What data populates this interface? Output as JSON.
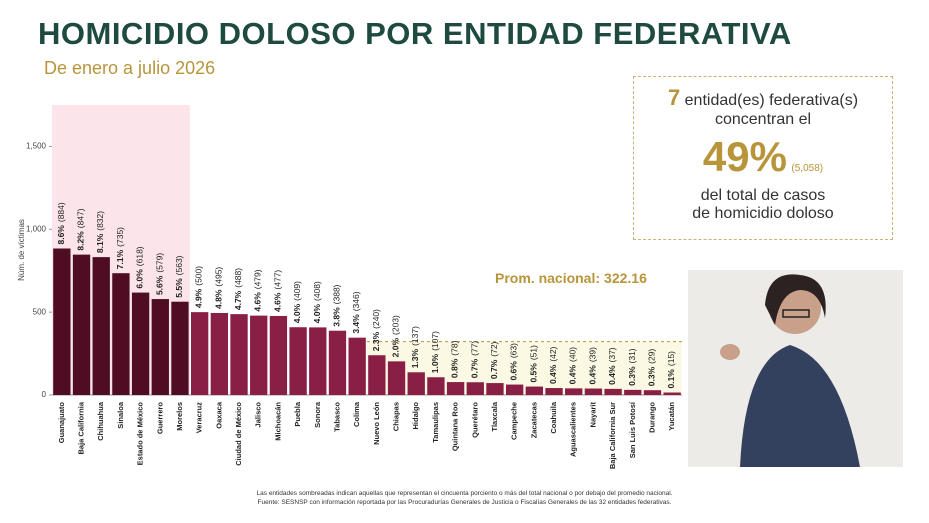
{
  "chart_data": {
    "type": "bar",
    "title": "HOMICIDIO DOLOSO POR ENTIDAD FEDERATIVA",
    "subtitle": "De enero a julio 2026",
    "y_label": "Núm. de víctimas",
    "categories": [
      "Guanajuato",
      "Baja California",
      "Chihuahua",
      "Sinaloa",
      "Estado de México",
      "Guerrero",
      "Morelos",
      "Veracruz",
      "Oaxaca",
      "Ciudad de México",
      "Jalisco",
      "Michoacán",
      "Puebla",
      "Sonora",
      "Tabasco",
      "Colima",
      "Nuevo León",
      "Chiapas",
      "Hidalgo",
      "Tamaulipas",
      "Quintana Roo",
      "Querétaro",
      "Tlaxcala",
      "Campeche",
      "Zacatecas",
      "Coahuila",
      "Aguascalientes",
      "Nayarit",
      "Baja California Sur",
      "San Luis Potosí",
      "Durango",
      "Yucatán"
    ],
    "values": [
      884,
      847,
      832,
      735,
      618,
      579,
      563,
      500,
      495,
      488,
      479,
      477,
      409,
      408,
      388,
      346,
      240,
      203,
      137,
      107,
      78,
      77,
      72,
      63,
      51,
      42,
      40,
      39,
      37,
      31,
      29,
      15
    ],
    "value_labels": [
      "(884)",
      "(847)",
      "(832)",
      "(735)",
      "(618)",
      "(579)",
      "(563)",
      "(500)",
      "(495)",
      "(488)",
      "(479)",
      "(477)",
      "(409)",
      "(408)",
      "(388)",
      "(346)",
      "(240)",
      "(203)",
      "(137)",
      "(107)",
      "(78)",
      "(77)",
      "(72)",
      "(63)",
      "(51)",
      "(42)",
      "(40)",
      "(39)",
      "(37)",
      "(31)",
      "(29)",
      "(15)"
    ],
    "shares": [
      8.6,
      8.2,
      8.1,
      7.1,
      6.0,
      5.6,
      5.5,
      4.9,
      4.8,
      4.7,
      4.6,
      4.6,
      4.0,
      4.0,
      3.8,
      3.4,
      2.3,
      2.0,
      1.3,
      1.0,
      0.8,
      0.7,
      0.7,
      0.6,
      0.5,
      0.4,
      0.4,
      0.4,
      0.4,
      0.3,
      0.3,
      0.1
    ],
    "share_labels": [
      "8.6%",
      "8.2%",
      "8.1%",
      "7.1%",
      "6.0%",
      "5.6%",
      "5.5%",
      "4.9%",
      "4.8%",
      "4.7%",
      "4.6%",
      "4.6%",
      "4.0%",
      "4.0%",
      "3.8%",
      "3.4%",
      "2.3%",
      "2.0%",
      "1.3%",
      "1.0%",
      "0.8%",
      "0.7%",
      "0.7%",
      "0.6%",
      "0.5%",
      "0.4%",
      "0.4%",
      "0.4%",
      "0.4%",
      "0.3%",
      "0.3%",
      "0.1%"
    ],
    "top_count": 7,
    "colors": {
      "top": "#4f0d24",
      "rest": "#8a1f45",
      "top_band": "#fbe4ea",
      "low_band": "#fbf8e4",
      "average": "#b8953a"
    },
    "average_label": "Prom. nacional:",
    "average": 322.16,
    "ylim": [
      0,
      1750
    ],
    "yticks": [
      0,
      500,
      {
        "value": 1000,
        "label": "1,000"
      },
      {
        "value": 1500,
        "label": "1,500"
      }
    ],
    "callout": {
      "count": 7,
      "line1": "entidad(es) federativa(s)",
      "line2": "concentran el",
      "share": "49%",
      "cases": "(5,058)",
      "line3": "del total de casos",
      "line4": "de homicidio doloso"
    },
    "footnotes": [
      "Las entidades sombreadas indican aquellas que representan el cincuenta porciento o más del total nacional o por debajo del promedio nacional.",
      "Fuente: SESNSP con información reportada por las Procuradurías Generales de Justicia o Fiscalías Generales de las 32 entidades federativas."
    ]
  }
}
